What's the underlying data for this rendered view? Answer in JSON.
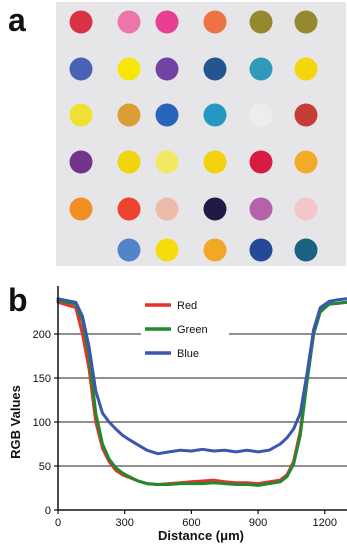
{
  "figure": {
    "panel_a_label": "a",
    "panel_b_label": "b"
  },
  "spot_array": {
    "background": "#e6e6e8",
    "spots": [
      [
        "#d8283a",
        "#ee6fa6",
        "#e7358e",
        "#ee6b3a",
        "#8f8424",
        "#8f8424"
      ],
      [
        "#3f5bb3",
        "#f6e600",
        "#6a3ba0",
        "#184e8c",
        "#2596b8",
        "#f6d400"
      ],
      [
        "#efe02a",
        "#d99a2a",
        "#1f5db8",
        "#1a93c0",
        "#ededed",
        "#c2352d"
      ],
      [
        "#6e2a86",
        "#f2d300",
        "#f3e85c",
        "#f4d000",
        "#d6113a",
        "#f2a71e"
      ],
      [
        "#f08a1a",
        "#ed3b25",
        "#eeb7a7",
        "#150f3c",
        "#b25ba6",
        "#f2c4c9"
      ],
      [
        null,
        "#4a7fc6",
        "#f8db00",
        "#f2a41a",
        "#1a3f95",
        "#105b7a"
      ]
    ]
  },
  "chart_data": {
    "type": "line",
    "xlabel": "Distance (μm)",
    "ylabel": "RGB Values",
    "xlim": [
      0,
      1300
    ],
    "ylim": [
      0,
      250
    ],
    "xticks": [
      0,
      300,
      600,
      900,
      1200
    ],
    "yticks": [
      0,
      50,
      100,
      150,
      200
    ],
    "grid": "horizontal",
    "legend_position": "top-center",
    "series": [
      {
        "name": "Red",
        "color": "#e8312b",
        "x": [
          0,
          40,
          80,
          110,
          140,
          170,
          200,
          230,
          260,
          290,
          320,
          360,
          400,
          450,
          500,
          550,
          600,
          650,
          700,
          750,
          800,
          850,
          900,
          950,
          1000,
          1030,
          1060,
          1090,
          1120,
          1150,
          1180,
          1220,
          1260,
          1300
        ],
        "y": [
          236,
          233,
          230,
          200,
          160,
          100,
          70,
          55,
          45,
          40,
          37,
          33,
          30,
          29,
          30,
          31,
          32,
          33,
          34,
          32,
          31,
          31,
          30,
          32,
          34,
          40,
          55,
          90,
          150,
          205,
          228,
          234,
          235,
          236
        ]
      },
      {
        "name": "Green",
        "color": "#1f8a2e",
        "x": [
          0,
          40,
          80,
          110,
          140,
          170,
          200,
          230,
          260,
          290,
          320,
          360,
          400,
          450,
          500,
          550,
          600,
          650,
          700,
          750,
          800,
          850,
          900,
          950,
          1000,
          1030,
          1060,
          1090,
          1120,
          1150,
          1180,
          1220,
          1260,
          1300
        ],
        "y": [
          238,
          236,
          234,
          215,
          175,
          110,
          75,
          58,
          48,
          42,
          38,
          33,
          30,
          29,
          29,
          30,
          30,
          30,
          31,
          30,
          29,
          29,
          28,
          30,
          32,
          38,
          52,
          85,
          145,
          200,
          225,
          234,
          235,
          236
        ]
      },
      {
        "name": "Blue",
        "color": "#3b56b0",
        "x": [
          0,
          40,
          80,
          110,
          140,
          170,
          200,
          230,
          260,
          290,
          320,
          360,
          400,
          450,
          500,
          550,
          600,
          650,
          700,
          750,
          800,
          850,
          900,
          950,
          1000,
          1030,
          1060,
          1090,
          1120,
          1150,
          1180,
          1220,
          1260,
          1300
        ],
        "y": [
          240,
          238,
          236,
          220,
          185,
          135,
          110,
          100,
          92,
          85,
          80,
          74,
          68,
          64,
          66,
          68,
          67,
          69,
          67,
          68,
          66,
          68,
          66,
          68,
          75,
          82,
          92,
          110,
          155,
          205,
          230,
          237,
          239,
          240
        ]
      }
    ]
  }
}
